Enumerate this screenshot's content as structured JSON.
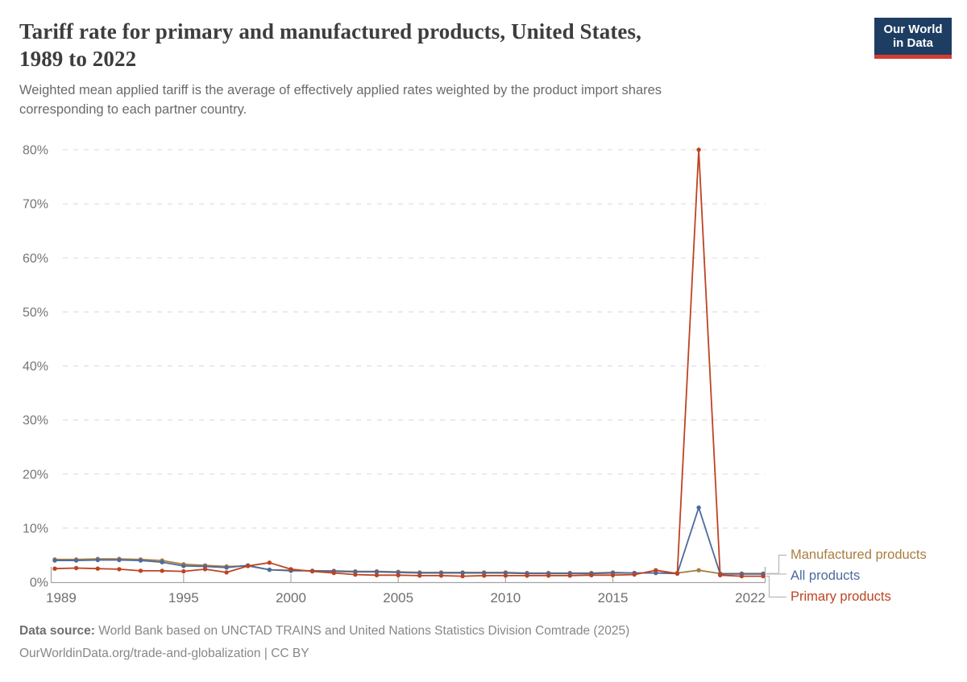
{
  "header": {
    "title_line1": "Tariff rate for primary and manufactured products, United States,",
    "title_line2": "1989 to 2022",
    "subtitle_line1": "Weighted mean applied tariff is the average of effectively applied rates weighted by the product import shares",
    "subtitle_line2": "corresponding to each partner country."
  },
  "logo": {
    "line1": "Our World",
    "line2": "in Data",
    "bg_color": "#1d3d63",
    "bar_color": "#d73c2c"
  },
  "footer": {
    "source_label": "Data source:",
    "source_text": "World Bank based on UNCTAD TRAINS and United Nations Statistics Division Comtrade (2025)",
    "link": "OurWorldinData.org/trade-and-globalization",
    "license_suffix": "| CC BY"
  },
  "chart_data": {
    "type": "line",
    "title": "Tariff rate for primary and manufactured products, United States, 1989 to 2022",
    "subtitle": "Weighted mean applied tariff is the average of effectively applied rates weighted by the product import shares corresponding to each partner country.",
    "xlabel": "",
    "ylabel": "",
    "ylim": [
      0,
      80
    ],
    "y_ticks": [
      0,
      10,
      20,
      30,
      40,
      50,
      60,
      70,
      80
    ],
    "y_tick_suffix": "%",
    "x_ticks": [
      1989,
      1995,
      2000,
      2005,
      2010,
      2015,
      2022
    ],
    "grid": "horizontal-dashed",
    "legend_position": "right-of-line-ends",
    "x": [
      1989,
      1990,
      1991,
      1992,
      1993,
      1994,
      1995,
      1996,
      1997,
      1998,
      1999,
      2000,
      2001,
      2002,
      2003,
      2004,
      2005,
      2006,
      2007,
      2008,
      2009,
      2010,
      2011,
      2012,
      2013,
      2014,
      2015,
      2016,
      2017,
      2018,
      2019,
      2020,
      2021,
      2022
    ],
    "series": [
      {
        "name": "Manufactured products",
        "color": "#a97e41",
        "values": [
          4.2,
          4.2,
          4.3,
          4.3,
          4.2,
          4.0,
          3.3,
          3.1,
          2.9,
          3.0,
          2.3,
          2.2,
          2.1,
          2.1,
          2.0,
          2.0,
          1.9,
          1.8,
          1.8,
          1.8,
          1.8,
          1.8,
          1.7,
          1.7,
          1.7,
          1.7,
          1.8,
          1.7,
          1.7,
          1.7,
          2.2,
          1.6,
          1.6,
          1.6
        ]
      },
      {
        "name": "All products",
        "color": "#4c6a9c",
        "values": [
          4.0,
          4.0,
          4.1,
          4.1,
          4.0,
          3.7,
          3.0,
          2.9,
          2.7,
          3.1,
          2.3,
          2.1,
          2.1,
          2.0,
          1.9,
          1.9,
          1.8,
          1.7,
          1.7,
          1.7,
          1.7,
          1.7,
          1.6,
          1.6,
          1.6,
          1.6,
          1.7,
          1.7,
          1.7,
          1.6,
          13.8,
          1.5,
          1.5,
          1.5
        ]
      },
      {
        "name": "Primary products",
        "color": "#be4322",
        "values": [
          2.5,
          2.6,
          2.5,
          2.4,
          2.1,
          2.1,
          2.0,
          2.4,
          1.8,
          3.0,
          3.6,
          2.4,
          2.0,
          1.7,
          1.4,
          1.3,
          1.3,
          1.2,
          1.2,
          1.1,
          1.2,
          1.2,
          1.2,
          1.2,
          1.2,
          1.3,
          1.3,
          1.4,
          2.2,
          1.6,
          80.0,
          1.3,
          1.1,
          1.1
        ]
      }
    ],
    "axis_colors": {
      "grid": "#d8d8d8",
      "axis_line": "#a3a3a3",
      "tick": "#ababab",
      "tick_label": "#757575",
      "legend_connector": "#b8b8b8"
    }
  }
}
